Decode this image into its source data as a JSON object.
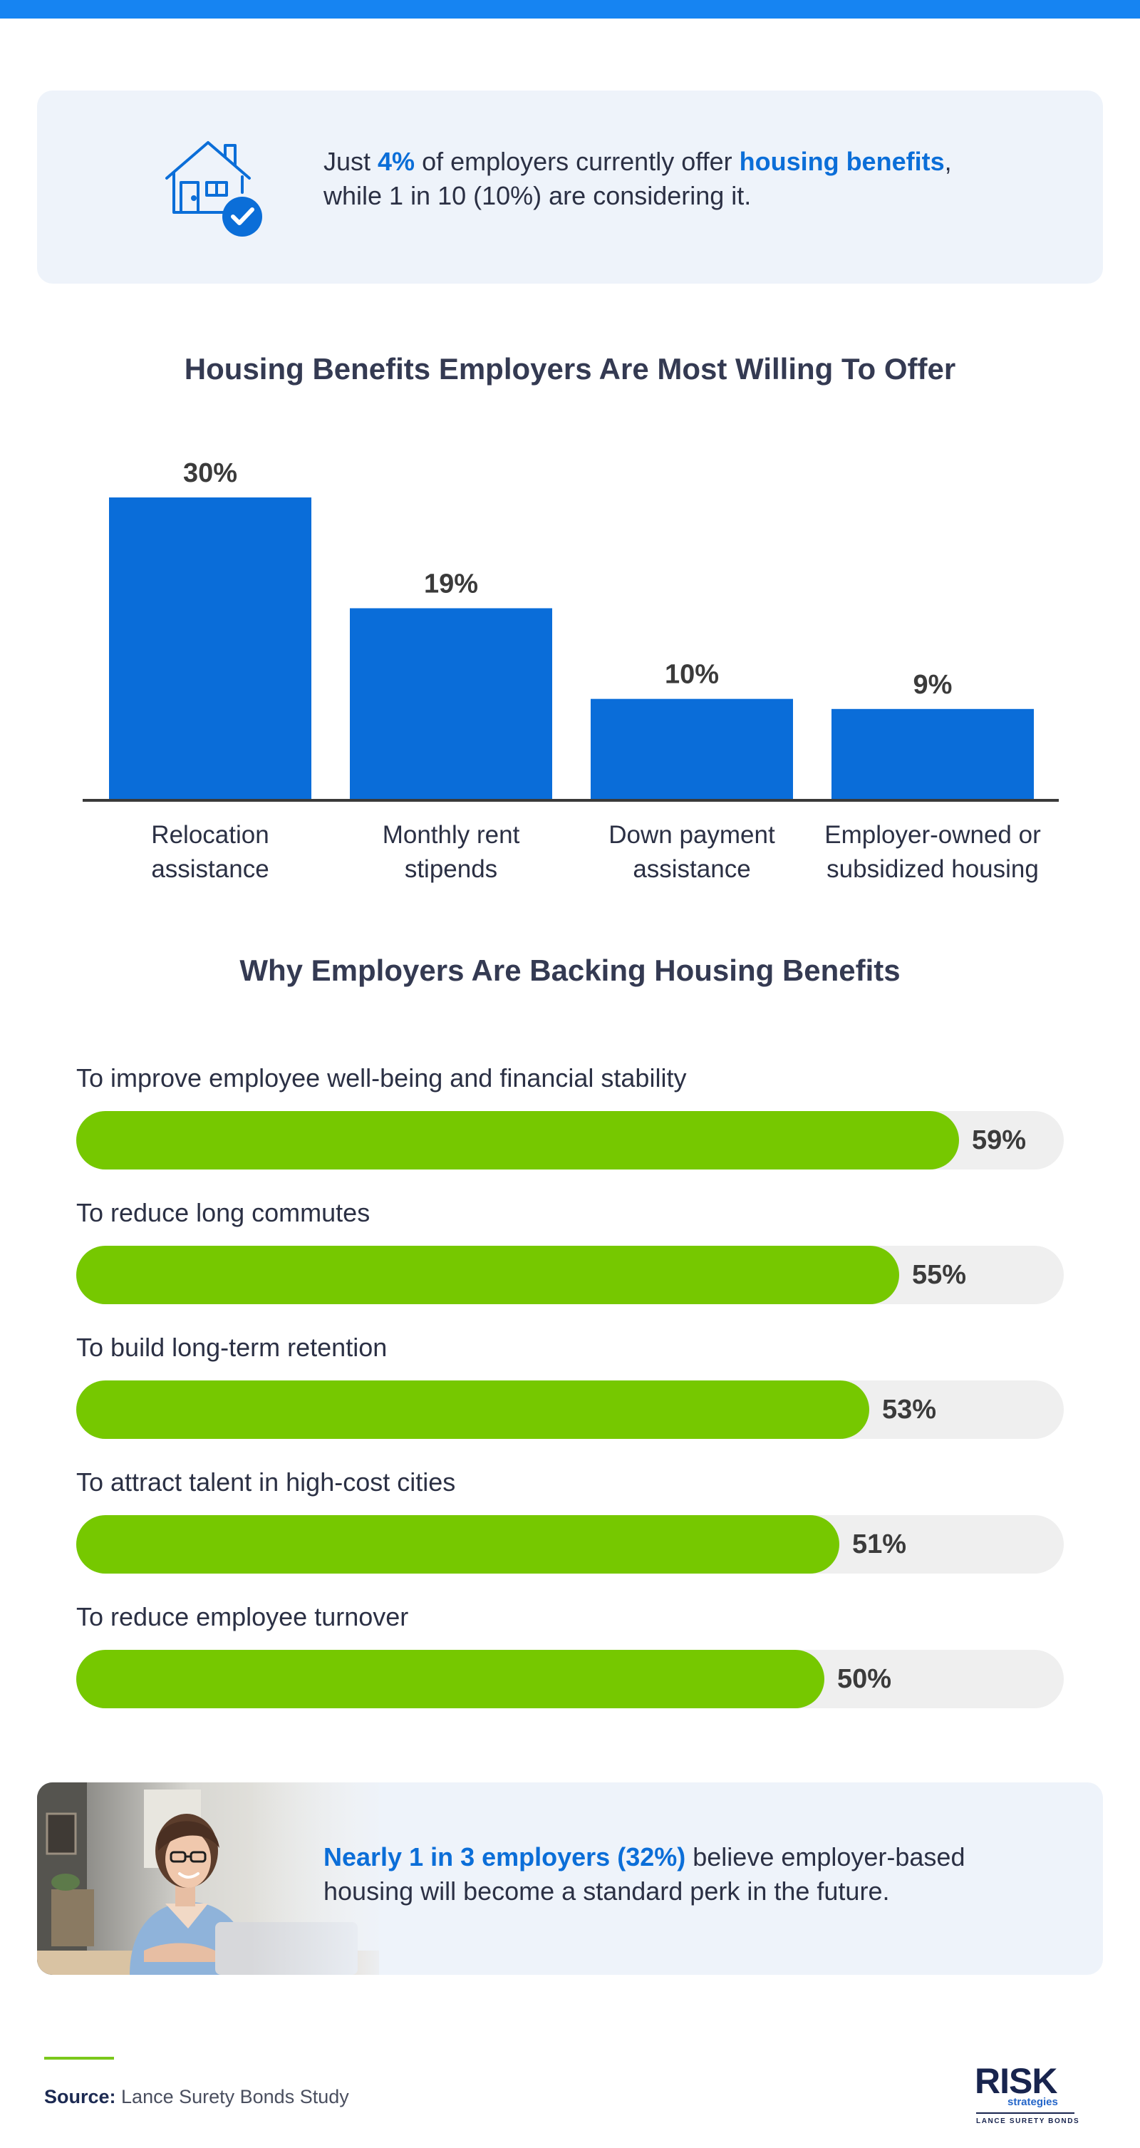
{
  "colors": {
    "accent_blue": "#1684f2",
    "bar_blue": "#0a6dd9",
    "highlight_blue": "#0b6ed8",
    "bar_green": "#76c800",
    "track_grey": "#efefef",
    "card_bg": "#eef3fa",
    "title_text": "#343a52"
  },
  "stat_card": {
    "icon": "house-check-icon",
    "text_before": "Just ",
    "highlight_1": "4%",
    "text_middle": " of employers currently offer ",
    "highlight_2": "housing benefits",
    "text_after": ",",
    "line_2": "while 1 in 10 (10%) are considering it."
  },
  "chart_data": [
    {
      "type": "bar",
      "title": "Housing Benefits Employers Are Most Willing To Offer",
      "categories": [
        [
          "Relocation",
          "assistance"
        ],
        [
          "Monthly rent",
          "stipends"
        ],
        [
          "Down payment",
          "assistance"
        ],
        [
          "Employer-owned or",
          "subsidized housing"
        ]
      ],
      "values": [
        30,
        19,
        10,
        9
      ],
      "value_labels": [
        "30%",
        "19%",
        "10%",
        "9%"
      ],
      "ylim": [
        0,
        30
      ],
      "grid": false,
      "legend": "none"
    },
    {
      "type": "bar",
      "orientation": "horizontal",
      "title": "Why Employers Are Backing Housing Benefits",
      "categories": [
        "To improve employee well-being and financial stability",
        "To reduce long commutes",
        "To build long-term retention",
        "To attract talent in high-cost cities",
        "To reduce employee turnover"
      ],
      "values": [
        59,
        55,
        53,
        51,
        50
      ],
      "value_labels": [
        "59%",
        "55%",
        "53%",
        "51%",
        "50%"
      ],
      "xlim": [
        0,
        66
      ],
      "grid": false,
      "legend": "none"
    }
  ],
  "photo_card": {
    "image": "woman-smiling-at-laptop-photo",
    "highlight": "Nearly 1 in 3 employers (32%)",
    "text_rest": " believe employer-based",
    "line_2": "housing will become a standard perk in the future."
  },
  "footer": {
    "source_label": "Source:",
    "source_text": " Lance Surety Bonds Study",
    "logo_main": "RISK",
    "logo_sub": "strategies",
    "logo_tagline": "LANCE SURETY BONDS"
  }
}
